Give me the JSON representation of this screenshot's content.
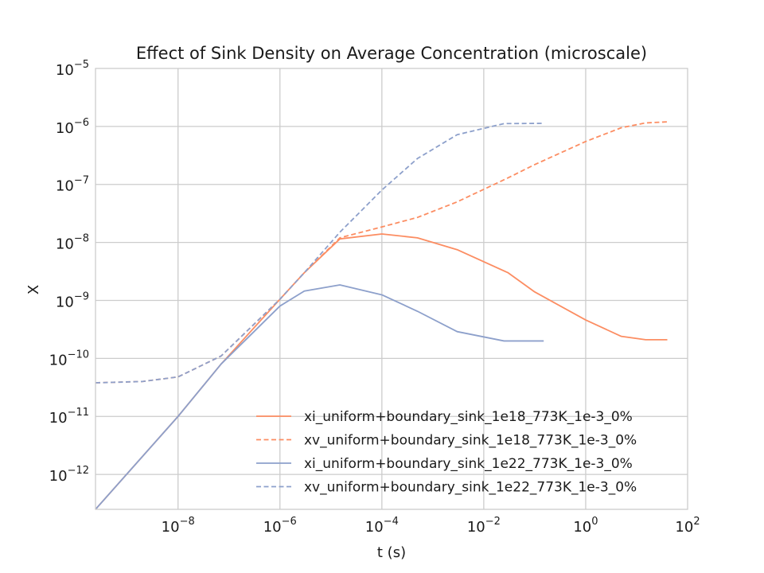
{
  "chart_data": {
    "type": "line",
    "title": "Effect of Sink Density on Average Concentration (microscale)",
    "xlabel": "t (s)",
    "ylabel": "X",
    "xscale": "log",
    "yscale": "log",
    "xlim": [
      2.4e-10,
      100
    ],
    "ylim": [
      2.5e-13,
      1e-05
    ],
    "grid": true,
    "legend_position": "lower-right",
    "x_ticks": [
      {
        "base": "10",
        "exp": "−8",
        "value": 1e-08
      },
      {
        "base": "10",
        "exp": "−6",
        "value": 1e-06
      },
      {
        "base": "10",
        "exp": "−4",
        "value": 0.0001
      },
      {
        "base": "10",
        "exp": "−2",
        "value": 0.01
      },
      {
        "base": "10",
        "exp": "0",
        "value": 1
      },
      {
        "base": "10",
        "exp": "2",
        "value": 100
      }
    ],
    "y_ticks": [
      {
        "base": "10",
        "exp": "−12",
        "value": 1e-12
      },
      {
        "base": "10",
        "exp": "−11",
        "value": 1e-11
      },
      {
        "base": "10",
        "exp": "−10",
        "value": 1e-10
      },
      {
        "base": "10",
        "exp": "−9",
        "value": 1e-09
      },
      {
        "base": "10",
        "exp": "−8",
        "value": 1e-08
      },
      {
        "base": "10",
        "exp": "−7",
        "value": 1e-07
      },
      {
        "base": "10",
        "exp": "−6",
        "value": 1e-06
      },
      {
        "base": "10",
        "exp": "−5",
        "value": 1e-05
      }
    ],
    "series": [
      {
        "name": "xi_uniform+boundary_sink_1e18_773K_1e-3_0%",
        "color": "#fc8d62",
        "dash": "solid",
        "points": [
          [
            2.4e-10,
            2.5e-13
          ],
          [
            1e-08,
            1e-11
          ],
          [
            7e-08,
            8e-11
          ],
          [
            1e-06,
            1.05e-09
          ],
          [
            3e-06,
            3e-09
          ],
          [
            1.5e-05,
            1.15e-08
          ],
          [
            0.0001,
            1.4e-08
          ],
          [
            0.0005,
            1.2e-08
          ],
          [
            0.003,
            7.5e-09
          ],
          [
            0.03,
            3e-09
          ],
          [
            0.1,
            1.4e-09
          ],
          [
            1,
            4.6e-10
          ],
          [
            5,
            2.4e-10
          ],
          [
            15,
            2.1e-10
          ],
          [
            40,
            2.1e-10
          ]
        ]
      },
      {
        "name": "xv_uniform+boundary_sink_1e18_773K_1e-3_0%",
        "color": "#fc8d62",
        "dash": "dashed",
        "points": [
          [
            2.4e-10,
            3.8e-11
          ],
          [
            2e-09,
            4e-11
          ],
          [
            1e-08,
            4.8e-11
          ],
          [
            7e-08,
            1.1e-10
          ],
          [
            1e-06,
            1.05e-09
          ],
          [
            3e-06,
            3e-09
          ],
          [
            1.5e-05,
            1.2e-08
          ],
          [
            0.0001,
            1.85e-08
          ],
          [
            0.0005,
            2.7e-08
          ],
          [
            0.003,
            5e-08
          ],
          [
            0.03,
            1.3e-07
          ],
          [
            0.1,
            2.2e-07
          ],
          [
            1,
            5.5e-07
          ],
          [
            5,
            9.5e-07
          ],
          [
            15,
            1.15e-06
          ],
          [
            40,
            1.2e-06
          ]
        ]
      },
      {
        "name": "xi_uniform+boundary_sink_1e22_773K_1e-3_0%",
        "color": "#8da0cb",
        "dash": "solid",
        "points": [
          [
            2.4e-10,
            2.5e-13
          ],
          [
            1e-08,
            1e-11
          ],
          [
            7e-08,
            8e-11
          ],
          [
            1e-06,
            8e-10
          ],
          [
            3e-06,
            1.45e-09
          ],
          [
            1.5e-05,
            1.85e-09
          ],
          [
            0.0001,
            1.25e-09
          ],
          [
            0.0005,
            6.5e-10
          ],
          [
            0.003,
            2.9e-10
          ],
          [
            0.025,
            2e-10
          ],
          [
            0.15,
            2e-10
          ]
        ]
      },
      {
        "name": "xv_uniform+boundary_sink_1e22_773K_1e-3_0%",
        "color": "#8da0cb",
        "dash": "dashed",
        "points": [
          [
            2.4e-10,
            3.8e-11
          ],
          [
            2e-09,
            4e-11
          ],
          [
            1e-08,
            4.8e-11
          ],
          [
            7e-08,
            1.1e-10
          ],
          [
            1e-06,
            1.05e-09
          ],
          [
            3e-06,
            3e-09
          ],
          [
            1.5e-05,
            1.5e-08
          ],
          [
            0.0001,
            8e-08
          ],
          [
            0.0005,
            2.8e-07
          ],
          [
            0.003,
            7.2e-07
          ],
          [
            0.025,
            1.12e-06
          ],
          [
            0.15,
            1.13e-06
          ]
        ]
      }
    ]
  }
}
